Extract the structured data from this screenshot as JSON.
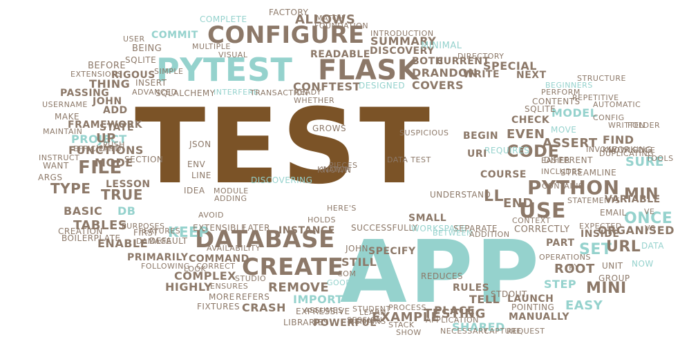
{
  "colors": {
    "brown": "#7b5327",
    "teal": "#95d2cd",
    "taupe": "#8c7868",
    "background": "#ffffff"
  },
  "words": [
    {
      "text": "TEST",
      "color": "brown"
    },
    {
      "text": "APP",
      "color": "teal"
    },
    {
      "text": "PYTEST",
      "color": "teal"
    },
    {
      "text": "FLASK",
      "color": "taupe"
    },
    {
      "text": "CONFIGURE",
      "color": "taupe"
    },
    {
      "text": "DATABASE",
      "color": "taupe"
    },
    {
      "text": "CREATE",
      "color": "taupe"
    },
    {
      "text": "PYTHON",
      "color": "taupe"
    },
    {
      "text": "USE",
      "color": "taupe"
    },
    {
      "text": "CODE",
      "color": "taupe"
    },
    {
      "text": "FILE",
      "color": "taupe"
    },
    {
      "text": "ONCE",
      "color": "teal"
    },
    {
      "text": "MIN",
      "color": "taupe"
    },
    {
      "text": "MINI",
      "color": "taupe"
    },
    {
      "text": "KEEP",
      "color": "teal"
    },
    {
      "text": "END",
      "color": "taupe"
    },
    {
      "text": "TRUE",
      "color": "taupe"
    },
    {
      "text": "ALLOWS",
      "color": "taupe"
    },
    {
      "text": "SUMMARY",
      "color": "taupe"
    },
    {
      "text": "DISCOVERY",
      "color": "taupe"
    },
    {
      "text": "MINIMAL",
      "color": "teal"
    },
    {
      "text": "CONFTEST",
      "color": "taupe"
    },
    {
      "text": "COVERS",
      "color": "taupe"
    },
    {
      "text": "DESIGNED",
      "color": "teal"
    },
    {
      "text": "BEGINNERS",
      "color": "teal"
    },
    {
      "text": "BOTH",
      "color": "taupe"
    },
    {
      "text": "CURRENT",
      "color": "taupe"
    },
    {
      "text": "DRANDON",
      "color": "taupe"
    },
    {
      "text": "SPECIAL",
      "color": "taupe"
    },
    {
      "text": "WRITE",
      "color": "taupe"
    },
    {
      "text": "NEXT",
      "color": "taupe"
    },
    {
      "text": "FACTORY",
      "color": "taupe"
    },
    {
      "text": "COMPLETE",
      "color": "teal"
    },
    {
      "text": "COMMIT",
      "color": "teal"
    },
    {
      "text": "BEING",
      "color": "taupe"
    },
    {
      "text": "SQLITE",
      "color": "taupe"
    },
    {
      "text": "BEFORE",
      "color": "taupe"
    },
    {
      "text": "RIGOUS",
      "color": "taupe"
    },
    {
      "text": "THING",
      "color": "taupe"
    },
    {
      "text": "PASSING",
      "color": "taupe"
    },
    {
      "text": "JOHN",
      "color": "taupe"
    },
    {
      "text": "ADD",
      "color": "taupe"
    },
    {
      "text": "MAKE",
      "color": "taupe"
    },
    {
      "text": "FRAMEWORK",
      "color": "taupe"
    },
    {
      "text": "STATE",
      "color": "taupe"
    },
    {
      "text": "PROJECT",
      "color": "teal"
    },
    {
      "text": "UP",
      "color": "taupe"
    },
    {
      "text": "FUNCTIONS",
      "color": "taupe"
    },
    {
      "text": "MODE",
      "color": "taupe"
    },
    {
      "text": "WANT",
      "color": "taupe"
    },
    {
      "text": "ARGS",
      "color": "taupe"
    },
    {
      "text": "TYPE",
      "color": "taupe"
    },
    {
      "text": "LESSON",
      "color": "taupe"
    },
    {
      "text": "BASIC",
      "color": "taupe"
    },
    {
      "text": "DB",
      "color": "teal"
    },
    {
      "text": "TABLES",
      "color": "taupe"
    },
    {
      "text": "ENABLE",
      "color": "taupe"
    },
    {
      "text": "PRIMARILY",
      "color": "taupe"
    },
    {
      "text": "COMMAND",
      "color": "taupe"
    },
    {
      "text": "COMPLEX",
      "color": "taupe"
    },
    {
      "text": "HIGHLY",
      "color": "taupe"
    },
    {
      "text": "CRASH",
      "color": "taupe"
    },
    {
      "text": "REMOVE",
      "color": "taupe"
    },
    {
      "text": "IMPORT",
      "color": "teal"
    },
    {
      "text": "MORE",
      "color": "taupe"
    },
    {
      "text": "REFERS",
      "color": "taupe"
    },
    {
      "text": "EXPRESSIVE",
      "color": "taupe"
    },
    {
      "text": "LIBRARIES",
      "color": "taupe"
    },
    {
      "text": "POWERFUL",
      "color": "taupe"
    },
    {
      "text": "EXAMPLE",
      "color": "taupe"
    },
    {
      "text": "TESTING",
      "color": "taupe"
    },
    {
      "text": "SHARED",
      "color": "teal"
    },
    {
      "text": "PLACE",
      "color": "taupe"
    },
    {
      "text": "TELL",
      "color": "taupe"
    },
    {
      "text": "RULES",
      "color": "taupe"
    },
    {
      "text": "STEP",
      "color": "teal"
    },
    {
      "text": "EASY",
      "color": "teal"
    },
    {
      "text": "ROOT",
      "color": "taupe"
    },
    {
      "text": "UNIT",
      "color": "taupe"
    },
    {
      "text": "NOW",
      "color": "teal"
    },
    {
      "text": "SET",
      "color": "teal"
    },
    {
      "text": "URL",
      "color": "taupe"
    },
    {
      "text": "PART",
      "color": "taupe"
    },
    {
      "text": "INSIDE",
      "color": "taupe"
    },
    {
      "text": "CORRECTLY",
      "color": "taupe"
    },
    {
      "text": "ORGANISED",
      "color": "taupe"
    },
    {
      "text": "EXPECTED",
      "color": "taupe"
    },
    {
      "text": "EMAIL",
      "color": "taupe"
    },
    {
      "text": "MODEL",
      "color": "teal"
    },
    {
      "text": "FIND",
      "color": "taupe"
    },
    {
      "text": "SURE",
      "color": "teal"
    },
    {
      "text": "ASSERT",
      "color": "taupe"
    },
    {
      "text": "EVEN",
      "color": "taupe"
    },
    {
      "text": "CHECK",
      "color": "taupe"
    },
    {
      "text": "MOVE",
      "color": "teal"
    },
    {
      "text": "COURSE",
      "color": "taupe"
    },
    {
      "text": "STREAMLINE",
      "color": "taupe"
    },
    {
      "text": "REQUIRES",
      "color": "teal"
    },
    {
      "text": "URI",
      "color": "taupe"
    },
    {
      "text": "LL",
      "color": "taupe"
    },
    {
      "text": "INSTANCE",
      "color": "taupe"
    },
    {
      "text": "SUCCESSFULLY",
      "color": "taupe"
    },
    {
      "text": "SMALL",
      "color": "taupe"
    },
    {
      "text": "SPECIFY",
      "color": "taupe"
    },
    {
      "text": "STILL",
      "color": "taupe"
    },
    {
      "text": "JOHN",
      "color": "taupe"
    },
    {
      "text": "CONTENTS",
      "color": "taupe"
    },
    {
      "text": "DATA",
      "color": "teal"
    },
    {
      "text": "GROUP",
      "color": "taupe"
    },
    {
      "text": "READABLE",
      "color": "taupe"
    },
    {
      "text": "SQLITE",
      "color": "taupe"
    },
    {
      "text": "LINE",
      "color": "taupe"
    },
    {
      "text": "JSON",
      "color": "taupe"
    },
    {
      "text": "IDEA",
      "color": "taupe"
    },
    {
      "text": "KNOWN",
      "color": "taupe"
    },
    {
      "text": "GROWS",
      "color": "taupe"
    },
    {
      "text": "BEGIN",
      "color": "taupe"
    },
    {
      "text": "DISCOVERING",
      "color": "teal"
    },
    {
      "text": "LAUNCH",
      "color": "taupe"
    },
    {
      "text": "MANUALLY",
      "color": "taupe"
    },
    {
      "text": "REQUEST",
      "color": "taupe"
    },
    {
      "text": "VARIABLE",
      "color": "taupe"
    },
    {
      "text": "WORKING",
      "color": "taupe"
    },
    {
      "text": "STATEMENTS",
      "color": "taupe"
    },
    {
      "text": "STRUCTURE",
      "color": "taupe"
    },
    {
      "text": "DEFAULT",
      "color": "taupe"
    },
    {
      "text": "FIRST",
      "color": "taupe"
    },
    {
      "text": "HOLDS",
      "color": "taupe"
    },
    {
      "text": "WORKSPACE",
      "color": "teal"
    },
    {
      "text": "REDUCES",
      "color": "taupe"
    },
    {
      "text": "SEPARATE",
      "color": "taupe"
    },
    {
      "text": "LOOK",
      "color": "taupe"
    },
    {
      "text": "CORRECT",
      "color": "taupe"
    },
    {
      "text": "AVAILABILITY",
      "color": "taupe"
    },
    {
      "text": "STDOUT",
      "color": "taupe"
    },
    {
      "text": "POINTING",
      "color": "taupe"
    },
    {
      "text": "PROCESS",
      "color": "taupe"
    },
    {
      "text": "SESSION",
      "color": "taupe"
    },
    {
      "text": "PY",
      "color": "taupe"
    },
    {
      "text": "GOOD",
      "color": "teal"
    },
    {
      "text": "COM",
      "color": "taupe"
    },
    {
      "text": "LATER",
      "color": "taupe"
    },
    {
      "text": "EXTENSIBLE",
      "color": "taupe"
    },
    {
      "text": "ENV",
      "color": "taupe"
    },
    {
      "text": "SECTION",
      "color": "taupe"
    },
    {
      "text": "INSERT",
      "color": "taupe"
    },
    {
      "text": "SIMPLE",
      "color": "taupe"
    },
    {
      "text": "MULTIPLE",
      "color": "taupe"
    },
    {
      "text": "USER",
      "color": "taupe"
    },
    {
      "text": "VISUAL",
      "color": "taupe"
    },
    {
      "text": "SQLALCHEMY",
      "color": "taupe"
    },
    {
      "text": "INTERFERE",
      "color": "teal"
    },
    {
      "text": "TRANSACTION",
      "color": "taupe"
    },
    {
      "text": "USERNAME",
      "color": "taupe"
    },
    {
      "text": "DIRECTORY",
      "color": "taupe"
    },
    {
      "text": "PERFORM",
      "color": "taupe"
    },
    {
      "text": "REPETITIVE",
      "color": "taupe"
    },
    {
      "text": "PUSH",
      "color": "taupe"
    },
    {
      "text": "HARD",
      "color": "taupe"
    },
    {
      "text": "BOILERPLATE",
      "color": "taupe"
    },
    {
      "text": "CREATION",
      "color": "taupe"
    },
    {
      "text": "PURPOSES",
      "color": "taupe"
    },
    {
      "text": "MATCH",
      "color": "taupe"
    },
    {
      "text": "FOUNDATION",
      "color": "taupe"
    },
    {
      "text": "INTRODUCTION",
      "color": "taupe"
    },
    {
      "text": "EFFICIENT",
      "color": "taupe"
    },
    {
      "text": "EXTENSIONS",
      "color": "taupe"
    },
    {
      "text": "ADVANCED",
      "color": "taupe"
    },
    {
      "text": "WHETHER",
      "color": "taupe"
    },
    {
      "text": "READY",
      "color": "taupe"
    },
    {
      "text": "MAINTAIN",
      "color": "taupe"
    },
    {
      "text": "INSTRUCT",
      "color": "taupe"
    },
    {
      "text": "OPERATIONS",
      "color": "taupe"
    },
    {
      "text": "KNOWLEDGE",
      "color": "taupe"
    },
    {
      "text": "DATA TEST",
      "color": "taupe"
    },
    {
      "text": "SUSPICIOUS",
      "color": "taupe"
    },
    {
      "text": "UNDERSTAND",
      "color": "taupe"
    },
    {
      "text": "EASIER",
      "color": "taupe"
    },
    {
      "text": "INCLUDES",
      "color": "taupe"
    },
    {
      "text": "CONTEXT",
      "color": "taupe"
    },
    {
      "text": "VS",
      "color": "taupe"
    },
    {
      "text": "VE",
      "color": "taupe"
    },
    {
      "text": "WRITTEN",
      "color": "taupe"
    },
    {
      "text": "CONFIG",
      "color": "taupe"
    },
    {
      "text": "FOLDER",
      "color": "taupe"
    },
    {
      "text": "DIFFERENT",
      "color": "taupe"
    },
    {
      "text": "PIECES",
      "color": "taupe"
    },
    {
      "text": "FOLLOWING",
      "color": "taupe"
    },
    {
      "text": "HERE'S",
      "color": "taupe"
    },
    {
      "text": "CONTAINS",
      "color": "taupe"
    },
    {
      "text": "MODULE",
      "color": "taupe"
    },
    {
      "text": "ADDING",
      "color": "taupe"
    },
    {
      "text": "AVOID",
      "color": "taupe"
    },
    {
      "text": "STUDIO",
      "color": "taupe"
    },
    {
      "text": "FIXTURES",
      "color": "taupe"
    },
    {
      "text": "BETWEEN",
      "color": "teal"
    },
    {
      "text": "ADDITION",
      "color": "taupe"
    },
    {
      "text": "NECESSARY",
      "color": "taupe"
    },
    {
      "text": "APPLICATION",
      "color": "taupe"
    },
    {
      "text": "REMAINS",
      "color": "taupe"
    },
    {
      "text": "STUDENT",
      "color": "taupe"
    },
    {
      "text": "INVOKE",
      "color": "taupe"
    },
    {
      "text": "DUPLICATING",
      "color": "taupe"
    },
    {
      "text": "DAMAGE",
      "color": "taupe"
    },
    {
      "text": "WATCH",
      "color": "taupe"
    },
    {
      "text": "ASSUMES",
      "color": "taupe"
    },
    {
      "text": "AUTOMATIC",
      "color": "taupe"
    },
    {
      "text": "TOOLS",
      "color": "taupe"
    },
    {
      "text": "LEARN",
      "color": "taupe"
    },
    {
      "text": "STACK",
      "color": "taupe"
    },
    {
      "text": "SHOW",
      "color": "taupe"
    },
    {
      "text": "CAPTURE",
      "color": "taupe"
    },
    {
      "text": "ENSURES",
      "color": "taupe"
    },
    {
      "text": "FEATURES",
      "color": "taupe"
    }
  ]
}
